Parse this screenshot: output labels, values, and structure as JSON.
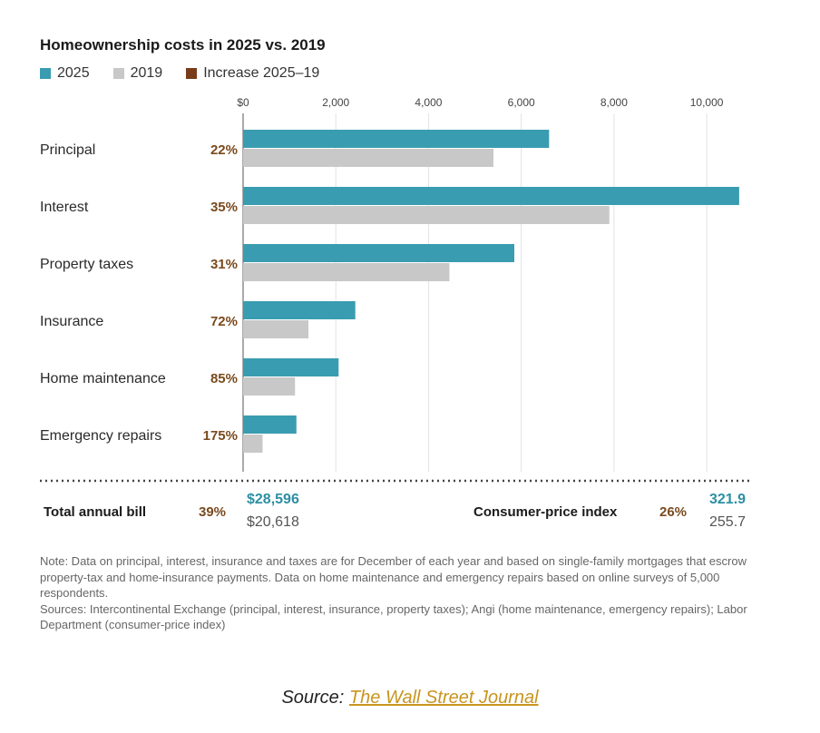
{
  "chart_data": {
    "type": "bar",
    "orientation": "horizontal",
    "title": "Homeownership costs in 2025 vs. 2019",
    "categories": [
      "Principal",
      "Interest",
      "Property taxes",
      "Insurance",
      "Home maintenance",
      "Emergency repairs"
    ],
    "series": [
      {
        "name": "2025",
        "color": "#3a9cb0",
        "values": [
          6600,
          10700,
          5850,
          2420,
          2060,
          1150
        ]
      },
      {
        "name": "2019",
        "color": "#c8c8c8",
        "values": [
          5400,
          7900,
          4450,
          1410,
          1120,
          420
        ]
      }
    ],
    "increase_label": "Increase 2025–19",
    "increase_color": "#7a3b1a",
    "increases": [
      "22%",
      "35%",
      "31%",
      "72%",
      "85%",
      "175%"
    ],
    "x_ticks": [
      "$0",
      "2,000",
      "4,000",
      "6,000",
      "8,000",
      "10,000"
    ],
    "x_tick_values": [
      0,
      2000,
      4000,
      6000,
      8000,
      10000
    ],
    "xlim": [
      0,
      10800
    ],
    "grid": true,
    "legend_position": "top-left"
  },
  "totals": {
    "label": "Total annual bill",
    "pct": "39%",
    "value_2025": "$28,596",
    "value_2019": "$20,618"
  },
  "cpi": {
    "label": "Consumer-price index",
    "pct": "26%",
    "value_2025": "321.9",
    "value_2019": "255.7"
  },
  "notes": {
    "note": "Note: Data on principal, interest, insurance and taxes are for December of each year and based on single-family mortgages that escrow property-tax and home-insurance payments. Data on home maintenance and emergency repairs based on online surveys of 5,000 respondents.",
    "sources": "Sources: Intercontinental Exchange (principal, interest, insurance, property taxes); Angi (home maintenance, emergency repairs); Labor Department (consumer-price index)"
  },
  "source_line": {
    "prefix": "Source:",
    "link_text": "The Wall Street Journal"
  }
}
